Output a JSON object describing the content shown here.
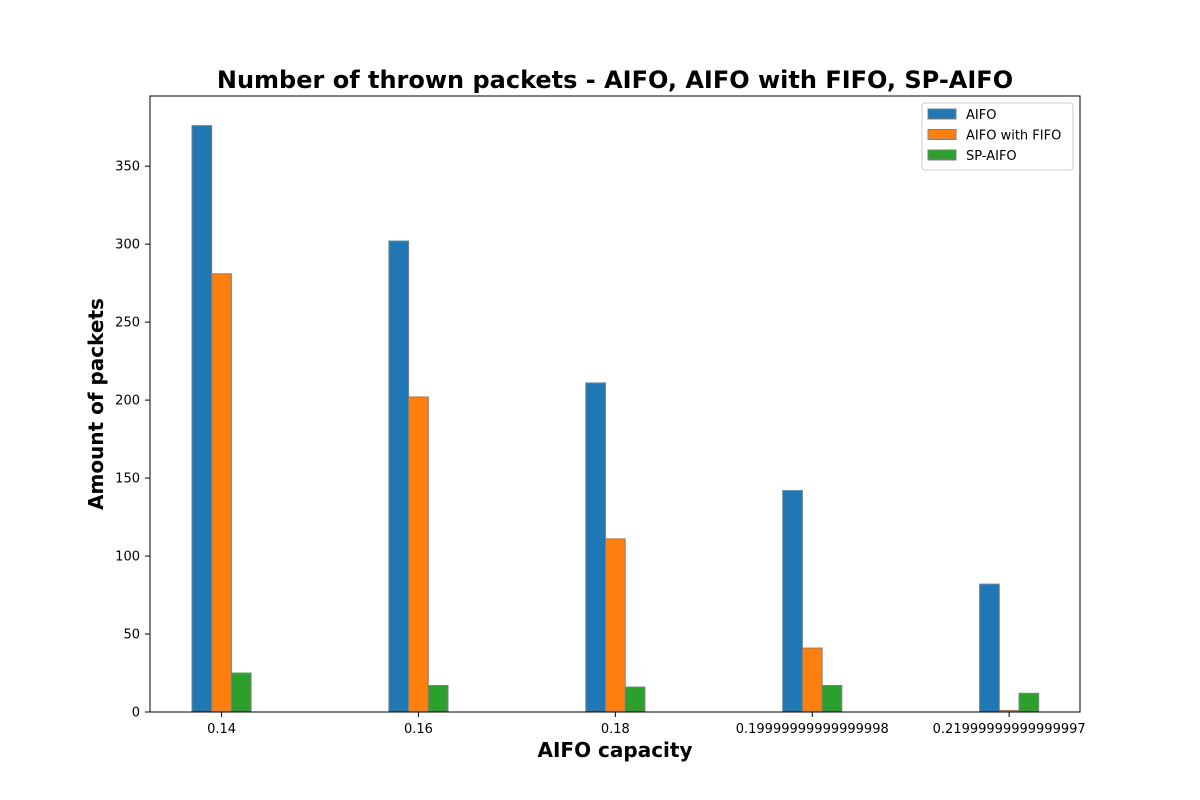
{
  "chart_data": {
    "type": "bar",
    "title": "Number of thrown packets - AIFO, AIFO with FIFO, SP-AIFO",
    "xlabel": "AIFO capacity",
    "ylabel": "Amount of packets",
    "categories": [
      "0.14",
      "0.16",
      "0.18",
      "0.19999999999999998",
      "0.21999999999999997"
    ],
    "series": [
      {
        "name": "AIFO",
        "color": "#1f77b4",
        "values": [
          376,
          302,
          211,
          142,
          82
        ]
      },
      {
        "name": "AIFO with FIFO",
        "color": "#ff7f0e",
        "values": [
          281,
          202,
          111,
          41,
          1
        ]
      },
      {
        "name": "SP-AIFO",
        "color": "#2ca02c",
        "values": [
          25,
          17,
          16,
          17,
          12
        ]
      }
    ],
    "ylim": [
      0,
      395
    ],
    "yticks": [
      0,
      50,
      100,
      150,
      200,
      250,
      300,
      350
    ],
    "grid": false,
    "legend_position": "top-right",
    "bar_edge_color": "#808080"
  }
}
